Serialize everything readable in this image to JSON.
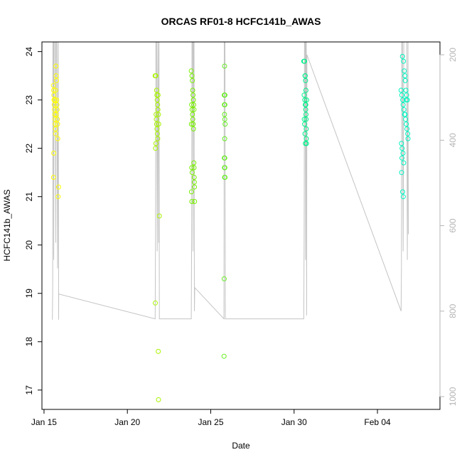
{
  "chart_data": {
    "type": "scatter",
    "title": "ORCAS RF01-8 HCFC141b_AWAS",
    "xlabel": "Date",
    "ylabel": "HCFC141b_AWAS",
    "xlim": [
      "2016-01-14T21:00",
      "2016-02-07T18:00"
    ],
    "ylim": [
      16.6,
      24.2
    ],
    "y2lim": [
      1030,
      170
    ],
    "x_ticks": [
      {
        "date": "2016-01-15",
        "label": "Jan 15"
      },
      {
        "date": "2016-01-20",
        "label": "Jan 20"
      },
      {
        "date": "2016-01-25",
        "label": "Jan 25"
      },
      {
        "date": "2016-01-30",
        "label": "Jan 30"
      },
      {
        "date": "2016-02-04",
        "label": "Feb 04"
      }
    ],
    "y_ticks": [
      17,
      18,
      19,
      20,
      21,
      22,
      23,
      24
    ],
    "y2_ticks": [
      200,
      400,
      600,
      800,
      1000
    ],
    "colors": {
      "pressure_line": "#c4c4c4",
      "frame": "#000000",
      "right_axis": "#b5b5b5"
    },
    "series": [
      {
        "color": "#ffff00",
        "points": [
          [
            "2016-01-15T13:30",
            23.3
          ],
          [
            "2016-01-15T13:50",
            23.2
          ],
          [
            "2016-01-15T14:10",
            23.1
          ],
          [
            "2016-01-15T14:30",
            23.0
          ],
          [
            "2016-01-15T14:50",
            22.9
          ],
          [
            "2016-01-15T15:10",
            22.8
          ],
          [
            "2016-01-15T15:30",
            22.7
          ],
          [
            "2016-01-15T15:50",
            22.6
          ],
          [
            "2016-01-15T16:10",
            22.5
          ],
          [
            "2016-01-15T16:30",
            22.4
          ],
          [
            "2016-01-15T16:50",
            22.3
          ],
          [
            "2016-01-15T17:10",
            23.7
          ],
          [
            "2016-01-15T17:30",
            23.5
          ],
          [
            "2016-01-15T17:50",
            23.4
          ],
          [
            "2016-01-15T18:10",
            23.0
          ],
          [
            "2016-01-15T18:30",
            22.9
          ],
          [
            "2016-01-15T18:50",
            22.8
          ],
          [
            "2016-01-15T19:10",
            22.6
          ],
          [
            "2016-01-15T19:30",
            22.5
          ],
          [
            "2016-01-15T14:00",
            21.9
          ],
          [
            "2016-01-15T13:40",
            21.4
          ],
          [
            "2016-01-15T19:40",
            22.2
          ],
          [
            "2016-01-15T21:00",
            21.2
          ],
          [
            "2016-01-15T20:20",
            21.0
          ],
          [
            "2016-01-15T15:40",
            23.0
          ],
          [
            "2016-01-15T16:40",
            23.2
          ],
          [
            "2016-01-15T17:40",
            22.7
          ]
        ]
      },
      {
        "color": "#a8f400",
        "points": [
          [
            "2016-01-21T16:00",
            23.5
          ],
          [
            "2016-01-21T17:00",
            23.5
          ],
          [
            "2016-01-21T18:00",
            23.2
          ],
          [
            "2016-01-21T18:30",
            23.1
          ],
          [
            "2016-01-21T19:00",
            23.0
          ],
          [
            "2016-01-21T19:30",
            22.9
          ],
          [
            "2016-01-21T20:00",
            22.8
          ],
          [
            "2016-01-21T17:20",
            22.7
          ],
          [
            "2016-01-21T17:40",
            22.6
          ],
          [
            "2016-01-21T18:10",
            22.5
          ],
          [
            "2016-01-21T18:40",
            22.4
          ],
          [
            "2016-01-21T19:10",
            22.3
          ],
          [
            "2016-01-21T19:40",
            22.2
          ],
          [
            "2016-01-21T17:10",
            22.1
          ],
          [
            "2016-01-21T20:10",
            23.1
          ],
          [
            "2016-01-21T20:40",
            22.7
          ],
          [
            "2016-01-21T21:00",
            22.5
          ],
          [
            "2016-01-21T16:30",
            22.0
          ],
          [
            "2016-01-21T16:10",
            18.8
          ],
          [
            "2016-01-21T22:00",
            20.6
          ],
          [
            "2016-01-21T20:30",
            17.8
          ],
          [
            "2016-01-21T20:50",
            16.8
          ]
        ]
      },
      {
        "color": "#78ef00",
        "points": [
          [
            "2016-01-23T20:00",
            23.6
          ],
          [
            "2016-01-23T21:00",
            23.5
          ],
          [
            "2016-01-23T21:30",
            23.4
          ],
          [
            "2016-01-23T22:00",
            23.2
          ],
          [
            "2016-01-23T22:30",
            23.1
          ],
          [
            "2016-01-23T23:00",
            23.0
          ],
          [
            "2016-01-23T20:30",
            22.9
          ],
          [
            "2016-01-23T21:10",
            22.8
          ],
          [
            "2016-01-23T21:40",
            22.7
          ],
          [
            "2016-01-23T22:10",
            22.6
          ],
          [
            "2016-01-23T22:40",
            22.5
          ],
          [
            "2016-01-23T23:10",
            22.4
          ],
          [
            "2016-01-23T23:30",
            22.9
          ],
          [
            "2016-01-23T20:10",
            22.5
          ],
          [
            "2016-01-23T20:40",
            21.6
          ],
          [
            "2016-01-23T23:40",
            21.7
          ],
          [
            "2016-01-24T00:00",
            21.6
          ],
          [
            "2016-01-23T21:20",
            21.5
          ],
          [
            "2016-01-24T00:10",
            21.4
          ],
          [
            "2016-01-24T00:20",
            21.3
          ],
          [
            "2016-01-24T00:30",
            21.2
          ],
          [
            "2016-01-23T20:20",
            21.1
          ],
          [
            "2016-01-23T20:50",
            20.9
          ],
          [
            "2016-01-24T00:40",
            20.9
          ],
          [
            "2016-01-23T23:50",
            22.8
          ]
        ]
      },
      {
        "color": "#66ee22",
        "points": [
          [
            "2016-01-25T20:00",
            23.7
          ],
          [
            "2016-01-25T19:30",
            23.1
          ],
          [
            "2016-01-25T20:30",
            23.1
          ],
          [
            "2016-01-25T19:40",
            22.9
          ],
          [
            "2016-01-25T20:20",
            22.9
          ],
          [
            "2016-01-25T19:50",
            22.7
          ],
          [
            "2016-01-25T20:10",
            22.6
          ],
          [
            "2016-01-25T20:40",
            22.5
          ],
          [
            "2016-01-25T20:05",
            22.2
          ],
          [
            "2016-01-25T19:35",
            21.8
          ],
          [
            "2016-01-25T20:15",
            21.8
          ],
          [
            "2016-01-25T19:45",
            21.6
          ],
          [
            "2016-01-25T20:25",
            21.6
          ],
          [
            "2016-01-25T19:55",
            21.4
          ],
          [
            "2016-01-25T20:35",
            21.4
          ],
          [
            "2016-01-25T19:20",
            19.3
          ],
          [
            "2016-01-25T19:10",
            17.7
          ]
        ]
      },
      {
        "color": "#00f08a",
        "points": [
          [
            "2016-01-30T14:00",
            23.8
          ],
          [
            "2016-01-30T15:00",
            23.8
          ],
          [
            "2016-01-30T16:00",
            23.5
          ],
          [
            "2016-01-30T16:30",
            23.4
          ],
          [
            "2016-01-30T17:00",
            23.2
          ],
          [
            "2016-01-30T14:30",
            23.1
          ],
          [
            "2016-01-30T15:30",
            23.0
          ],
          [
            "2016-01-30T16:10",
            22.9
          ],
          [
            "2016-01-30T16:40",
            22.8
          ],
          [
            "2016-01-30T17:10",
            22.7
          ],
          [
            "2016-01-30T14:40",
            22.6
          ],
          [
            "2016-01-30T17:20",
            22.6
          ],
          [
            "2016-01-30T15:10",
            22.5
          ],
          [
            "2016-01-30T17:30",
            22.4
          ],
          [
            "2016-01-30T15:40",
            22.3
          ],
          [
            "2016-01-30T17:40",
            22.2
          ],
          [
            "2016-01-30T16:20",
            22.1
          ],
          [
            "2016-01-30T17:50",
            22.1
          ],
          [
            "2016-01-30T15:50",
            23.5
          ],
          [
            "2016-01-30T16:50",
            22.9
          ],
          [
            "2016-01-30T18:00",
            23.0
          ]
        ]
      },
      {
        "color": "#00f5c0",
        "points": [
          [
            "2016-02-05T12:00",
            23.9
          ],
          [
            "2016-02-05T13:30",
            23.8
          ],
          [
            "2016-02-05T14:30",
            23.6
          ],
          [
            "2016-02-05T15:30",
            23.5
          ],
          [
            "2016-02-05T16:00",
            23.4
          ],
          [
            "2016-02-05T10:00",
            23.2
          ],
          [
            "2016-02-05T17:00",
            23.2
          ],
          [
            "2016-02-05T11:00",
            23.1
          ],
          [
            "2016-02-05T18:00",
            23.1
          ],
          [
            "2016-02-05T12:30",
            23.0
          ],
          [
            "2016-02-05T19:00",
            23.0
          ],
          [
            "2016-02-05T13:00",
            22.9
          ],
          [
            "2016-02-05T14:00",
            22.8
          ],
          [
            "2016-02-05T15:00",
            22.7
          ],
          [
            "2016-02-05T16:30",
            22.6
          ],
          [
            "2016-02-05T17:30",
            22.5
          ],
          [
            "2016-02-05T18:30",
            22.4
          ],
          [
            "2016-02-05T19:30",
            22.3
          ],
          [
            "2016-02-05T20:00",
            22.2
          ],
          [
            "2016-02-05T10:30",
            22.1
          ],
          [
            "2016-02-05T11:30",
            22.0
          ],
          [
            "2016-02-05T12:45",
            21.9
          ],
          [
            "2016-02-05T11:15",
            21.8
          ],
          [
            "2016-02-05T13:45",
            21.7
          ],
          [
            "2016-02-05T10:45",
            21.5
          ],
          [
            "2016-02-05T12:15",
            21.1
          ],
          [
            "2016-02-05T13:15",
            21.0
          ],
          [
            "2016-02-05T15:45",
            22.7
          ],
          [
            "2016-02-05T17:15",
            23.0
          ]
        ]
      }
    ],
    "pressure_path": [
      [
        "2016-01-15T12:00",
        820
      ],
      [
        "2016-01-15T12:30",
        750
      ],
      [
        "2016-01-15T12:45",
        200
      ],
      [
        "2016-01-15T13:00",
        150
      ],
      [
        "2016-01-15T13:30",
        150
      ],
      [
        "2016-01-15T14:00",
        680
      ],
      [
        "2016-01-15T14:30",
        150
      ],
      [
        "2016-01-15T16:00",
        150
      ],
      [
        "2016-01-15T17:00",
        640
      ],
      [
        "2016-01-15T17:30",
        150
      ],
      [
        "2016-01-15T18:30",
        150
      ],
      [
        "2016-01-15T19:30",
        700
      ],
      [
        "2016-01-15T20:30",
        150
      ],
      [
        "2016-01-15T21:00",
        820
      ],
      [
        "2016-01-15T21:10",
        760
      ],
      [
        "2016-01-21T16:00",
        818
      ],
      [
        "2016-01-21T16:30",
        620
      ],
      [
        "2016-01-21T17:00",
        150
      ],
      [
        "2016-01-21T18:00",
        150
      ],
      [
        "2016-01-21T19:00",
        660
      ],
      [
        "2016-01-21T20:00",
        150
      ],
      [
        "2016-01-21T21:00",
        640
      ],
      [
        "2016-01-21T21:30",
        150
      ],
      [
        "2016-01-21T22:00",
        818
      ],
      [
        "2016-01-23T20:00",
        818
      ],
      [
        "2016-01-23T20:30",
        620
      ],
      [
        "2016-01-23T21:00",
        150
      ],
      [
        "2016-01-23T22:00",
        150
      ],
      [
        "2016-01-23T22:30",
        660
      ],
      [
        "2016-01-23T23:00",
        150
      ],
      [
        "2016-01-24T00:00",
        150
      ],
      [
        "2016-01-24T00:30",
        800
      ],
      [
        "2016-01-24T01:00",
        745
      ],
      [
        "2016-01-25T19:00",
        818
      ],
      [
        "2016-01-25T19:30",
        150
      ],
      [
        "2016-01-25T20:30",
        150
      ],
      [
        "2016-01-25T21:00",
        818
      ],
      [
        "2016-01-30T14:00",
        818
      ],
      [
        "2016-01-30T14:30",
        620
      ],
      [
        "2016-01-30T15:00",
        150
      ],
      [
        "2016-01-30T16:00",
        150
      ],
      [
        "2016-01-30T16:30",
        680
      ],
      [
        "2016-01-30T17:00",
        150
      ],
      [
        "2016-01-30T17:30",
        150
      ],
      [
        "2016-01-30T18:00",
        810
      ],
      [
        "2016-01-30T18:30",
        200
      ],
      [
        "2016-02-05T10:00",
        800
      ],
      [
        "2016-02-05T10:30",
        700
      ],
      [
        "2016-02-05T11:00",
        150
      ],
      [
        "2016-02-05T12:00",
        150
      ],
      [
        "2016-02-05T13:00",
        660
      ],
      [
        "2016-02-05T14:00",
        150
      ],
      [
        "2016-02-05T18:00",
        150
      ],
      [
        "2016-02-05T19:00",
        680
      ],
      [
        "2016-02-05T20:00",
        150
      ],
      [
        "2016-02-05T20:30",
        620
      ]
    ]
  }
}
